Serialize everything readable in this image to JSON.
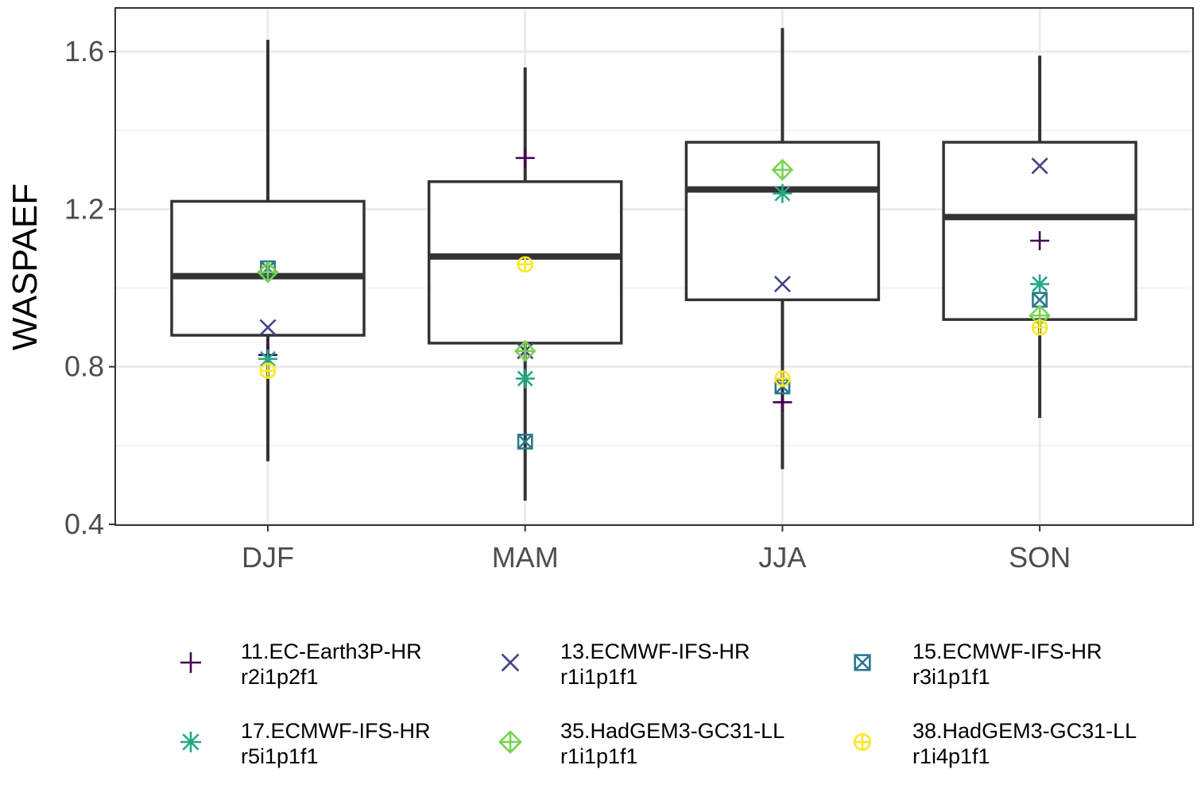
{
  "chart_data": {
    "type": "boxplot",
    "title": "",
    "xlabel": "",
    "ylabel": "WASPAEF",
    "ylim": [
      0.4,
      1.7
    ],
    "yticks": [
      0.4,
      0.8,
      1.2,
      1.6
    ],
    "ytick_labels": [
      "0.4",
      "0.8",
      "1.2",
      "1.6"
    ],
    "grid": true,
    "legend_position": "bottom",
    "categories": [
      "DJF",
      "MAM",
      "JJA",
      "SON"
    ],
    "boxes": [
      {
        "category": "DJF",
        "whisker_low": 0.56,
        "q1": 0.88,
        "median": 1.03,
        "q3": 1.22,
        "whisker_high": 1.63
      },
      {
        "category": "MAM",
        "whisker_low": 0.46,
        "q1": 0.86,
        "median": 1.08,
        "q3": 1.27,
        "whisker_high": 1.56
      },
      {
        "category": "JJA",
        "whisker_low": 0.54,
        "q1": 0.97,
        "median": 1.25,
        "q3": 1.37,
        "whisker_high": 1.66
      },
      {
        "category": "SON",
        "whisker_low": 0.67,
        "q1": 0.92,
        "median": 1.18,
        "q3": 1.37,
        "whisker_high": 1.59
      }
    ],
    "series": [
      {
        "name": "11.EC-Earth3P-HR r2i1p2f1",
        "label_lines": [
          "11.EC-Earth3P-HR",
          "r2i1p2f1"
        ],
        "shape": "plus",
        "color": "#440154",
        "values": [
          0.83,
          1.33,
          0.71,
          1.12
        ]
      },
      {
        "name": "13.ECMWF-IFS-HR r1i1p1f1",
        "label_lines": [
          "13.ECMWF-IFS-HR",
          "r1i1p1f1"
        ],
        "shape": "cross",
        "color": "#414487",
        "values": [
          0.9,
          0.84,
          1.01,
          1.31
        ]
      },
      {
        "name": "15.ECMWF-IFS-HR r3i1p1f1",
        "label_lines": [
          "15.ECMWF-IFS-HR",
          "r3i1p1f1"
        ],
        "shape": "square-cross",
        "color": "#2A788E",
        "values": [
          1.05,
          0.61,
          0.75,
          0.97
        ]
      },
      {
        "name": "17.ECMWF-IFS-HR r5i1p1f1",
        "label_lines": [
          "17.ECMWF-IFS-HR",
          "r5i1p1f1"
        ],
        "shape": "asterisk",
        "color": "#22A884",
        "values": [
          0.82,
          0.77,
          1.24,
          1.01
        ]
      },
      {
        "name": "35.HadGEM3-GC31-LL r1i1p1f1",
        "label_lines": [
          "35.HadGEM3-GC31-LL",
          "r1i1p1f1"
        ],
        "shape": "diamond-plus",
        "color": "#7AD151",
        "values": [
          1.04,
          0.84,
          1.3,
          0.93
        ]
      },
      {
        "name": "38.HadGEM3-GC31-LL r1i4p1f1",
        "label_lines": [
          "38.HadGEM3-GC31-LL",
          "r1i4p1f1"
        ],
        "shape": "circle-plus",
        "color": "#FDE725",
        "values": [
          0.79,
          1.06,
          0.77,
          0.9
        ]
      }
    ]
  }
}
